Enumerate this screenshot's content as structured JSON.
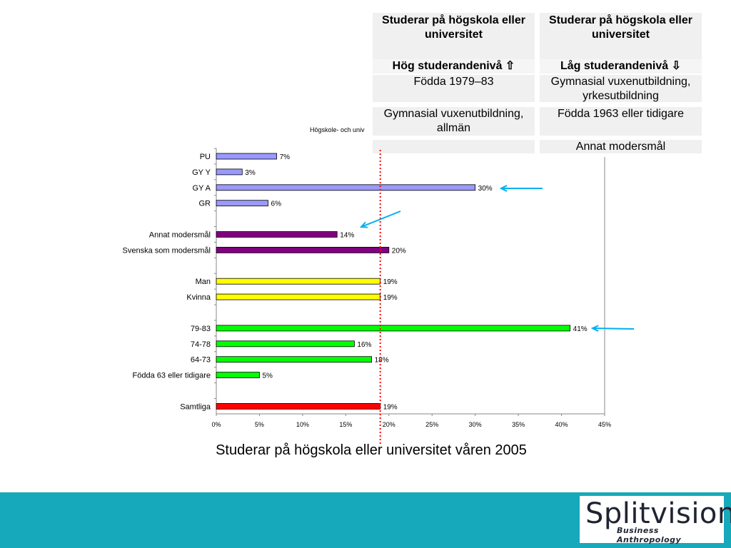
{
  "table": {
    "left_header": "Studerar på högskola eller universitet",
    "left_sub": "Hög studerandenivå ⇧",
    "right_header": "Studerar på högskola eller universitet",
    "right_sub": "Låg studerandenivå ⇩",
    "rows": [
      {
        "left": "Födda 1979–83",
        "right": "Gymnasial vuxenutbildning, yrkesutbildning"
      },
      {
        "left": "Gymnasial vuxenutbildning, allmän",
        "right": "Födda 1963 eller tidigare"
      },
      {
        "left": "",
        "right": "Annat modersmål"
      }
    ]
  },
  "chart_title_partial": "Högskole- och univ",
  "caption": "Studerar på högskola eller universitet våren 2005",
  "logo": {
    "main": "Splitvision",
    "sub": "Business Anthropology"
  },
  "chart_data": {
    "type": "bar",
    "orientation": "horizontal",
    "xlim": [
      0,
      45
    ],
    "xticks": [
      "0%",
      "5%",
      "10%",
      "15%",
      "20%",
      "25%",
      "30%",
      "35%",
      "40%",
      "45%"
    ],
    "reference_line": 19,
    "bars": [
      {
        "label": "PU",
        "value": 7,
        "data_label": "7%",
        "color": "#9999ff",
        "slot": 0
      },
      {
        "label": "GY Y",
        "value": 3,
        "data_label": "3%",
        "color": "#9999ff",
        "slot": 1
      },
      {
        "label": "GY A",
        "value": 30,
        "data_label": "30%",
        "color": "#9999ff",
        "slot": 2
      },
      {
        "label": "GR",
        "value": 6,
        "data_label": "6%",
        "color": "#9999ff",
        "slot": 3
      },
      {
        "label": "Annat modersmål",
        "value": 14,
        "data_label": "14%",
        "color": "#800080",
        "slot": 5
      },
      {
        "label": "Svenska som modersmål",
        "value": 20,
        "data_label": "20%",
        "color": "#800080",
        "slot": 6
      },
      {
        "label": "Man",
        "value": 19,
        "data_label": "19%",
        "color": "#ffff00",
        "slot": 8
      },
      {
        "label": "Kvinna",
        "value": 19,
        "data_label": "19%",
        "color": "#ffff00",
        "slot": 9
      },
      {
        "label": "79-83",
        "value": 41,
        "data_label": "41%",
        "color": "#00ff00",
        "slot": 11
      },
      {
        "label": "74-78",
        "value": 16,
        "data_label": "16%",
        "color": "#00ff00",
        "slot": 12
      },
      {
        "label": "64-73",
        "value": 18,
        "data_label": "18%",
        "color": "#00ff00",
        "slot": 13
      },
      {
        "label": "Födda 63 eller tidigare",
        "value": 5,
        "data_label": "5%",
        "color": "#00ff00",
        "slot": 14
      },
      {
        "label": "Samtliga",
        "value": 19,
        "data_label": "19%",
        "color": "#ff0000",
        "slot": 16
      }
    ]
  },
  "colors": {
    "footer": "#16a9bb",
    "arrow": "#00b0f0",
    "refline": "#ff0000"
  }
}
